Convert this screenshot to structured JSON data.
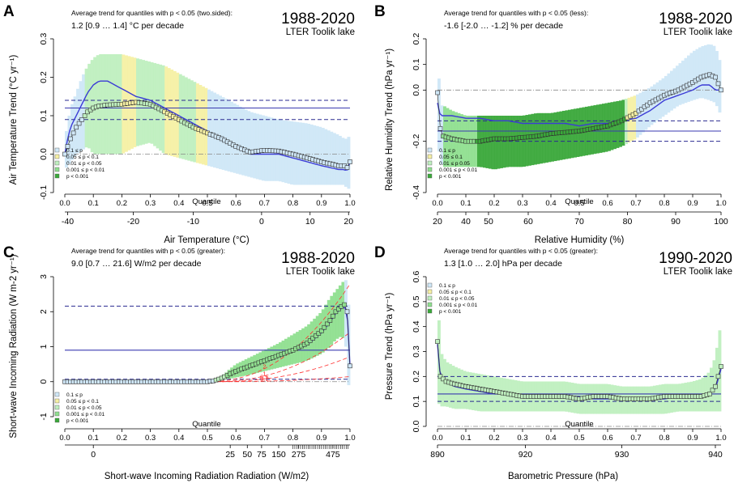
{
  "legend": [
    {
      "label": "0.1 ≤ p",
      "color": "#cfe7f7"
    },
    {
      "label": "0.05 ≤ p < 0.1",
      "color": "#f6f0a4"
    },
    {
      "label": "0.01 ≤ p < 0.05",
      "color": "#bfefbf"
    },
    {
      "label": "0.001 ≤ p < 0.01",
      "color": "#8fdf8f"
    },
    {
      "label": "p < 0.001",
      "color": "#3aa83a"
    }
  ],
  "legend_b": [
    {
      "label": "0.1 ≤ p",
      "color": "#cfe7f7"
    },
    {
      "label": "0.05 ≤        0.1",
      "color": "#f6f0a4"
    },
    {
      "label": "0.01 ≤ p   0.05",
      "color": "#bfefbf"
    },
    {
      "label": "0.001 ≤ p < 0.01",
      "color": "#8fdf8f"
    },
    {
      "label": "p < 0.001",
      "color": "#3aa83a"
    }
  ],
  "chart_data": [
    {
      "panel": "A",
      "type": "line",
      "trend_caption": "Average trend for quantiles with p < 0.05 (two.sided):",
      "trend_value": "1.2  [0.9 … 1.4]  °C per decade",
      "period": "1988-2020",
      "site": "LTER Toolik lake",
      "ylabel": "Air Temperature Trend (°C yr⁻¹)",
      "xlabel": "Air Temperature (°C)",
      "ylim": [
        -0.1,
        0.3
      ],
      "yticks": [
        {
          "v": -0.1,
          "t": "-0.1"
        },
        {
          "v": 0.0,
          "t": "0.0"
        },
        {
          "v": 0.1,
          "t": "0.1"
        },
        {
          "v": 0.2,
          "t": "0.2"
        },
        {
          "v": 0.3,
          "t": "0.3"
        }
      ],
      "quantile_label": "Quantile",
      "quantile_ticks": [
        {
          "q": 0.0,
          "t": "0.0"
        },
        {
          "q": 0.1,
          "t": "0.1"
        },
        {
          "q": 0.2,
          "t": "0.2"
        },
        {
          "q": 0.3,
          "t": "0.3"
        },
        {
          "q": 0.4,
          "t": "0.4"
        },
        {
          "q": 0.5,
          "t": "0.5"
        },
        {
          "q": 0.6,
          "t": "0.6"
        },
        {
          "q": 0.7,
          "t": "0.7"
        },
        {
          "q": 0.8,
          "t": "0.8"
        },
        {
          "q": 0.9,
          "t": "0.9"
        },
        {
          "q": 1.0,
          "t": "1.0"
        }
      ],
      "x_ticks": [
        {
          "q": 0.01,
          "t": "-40"
        },
        {
          "q": 0.24,
          "t": "-20"
        },
        {
          "q": 0.45,
          "t": "-10"
        },
        {
          "q": 0.69,
          "t": "0"
        },
        {
          "q": 0.86,
          "t": "10"
        },
        {
          "q": 0.995,
          "t": "20"
        }
      ],
      "avg_trend": 0.12,
      "ci": [
        0.09,
        0.14
      ],
      "q": [
        0.0,
        0.01,
        0.02,
        0.04,
        0.06,
        0.08,
        0.1,
        0.12,
        0.15,
        0.2,
        0.25,
        0.3,
        0.35,
        0.4,
        0.45,
        0.5,
        0.55,
        0.6,
        0.65,
        0.7,
        0.75,
        0.8,
        0.85,
        0.9,
        0.93,
        0.96,
        0.98,
        0.99,
        1.0
      ],
      "trend": [
        0.0,
        0.02,
        0.04,
        0.07,
        0.09,
        0.11,
        0.12,
        0.125,
        0.128,
        0.13,
        0.135,
        0.13,
        0.11,
        0.09,
        0.07,
        0.055,
        0.04,
        0.02,
        0.005,
        0.01,
        0.008,
        0.0,
        -0.01,
        -0.02,
        -0.025,
        -0.03,
        -0.03,
        -0.035,
        -0.02
      ],
      "fit": [
        0.0,
        0.04,
        0.07,
        0.1,
        0.13,
        0.16,
        0.18,
        0.19,
        0.19,
        0.17,
        0.15,
        0.14,
        0.12,
        0.1,
        0.08,
        0.06,
        0.04,
        0.02,
        0.0,
        0.0,
        0.0,
        -0.01,
        -0.02,
        -0.03,
        -0.035,
        -0.04,
        -0.04,
        -0.045,
        -0.02
      ],
      "upper": [
        0.04,
        0.08,
        0.12,
        0.16,
        0.2,
        0.23,
        0.25,
        0.26,
        0.26,
        0.26,
        0.25,
        0.24,
        0.23,
        0.21,
        0.19,
        0.17,
        0.15,
        0.13,
        0.11,
        0.1,
        0.09,
        0.085,
        0.08,
        0.07,
        0.06,
        0.05,
        0.04,
        0.04,
        0.05
      ],
      "lower": [
        -0.04,
        -0.03,
        -0.02,
        0.0,
        0.01,
        0.02,
        0.0,
        0.0,
        0.0,
        0.0,
        0.02,
        0.03,
        0.0,
        -0.01,
        -0.02,
        -0.03,
        -0.04,
        -0.05,
        -0.06,
        -0.07,
        -0.07,
        -0.08,
        -0.08,
        -0.08,
        -0.08,
        -0.08,
        -0.08,
        -0.09,
        -0.09
      ],
      "sig_bands": [
        {
          "q0": 0.07,
          "q1": 0.5,
          "level": 2
        },
        {
          "q0": 0.2,
          "q1": 0.25,
          "level": 1
        },
        {
          "q0": 0.35,
          "q1": 0.4,
          "level": 1
        },
        {
          "q0": 0.46,
          "q1": 0.5,
          "level": 1
        }
      ]
    },
    {
      "panel": "B",
      "type": "line",
      "trend_caption": "Average trend for quantiles with p < 0.05 (less):",
      "trend_value": "-1.6  [-2.0 … -1.2]  % per decade",
      "period": "1988-2020",
      "site": "LTER Toolik lake",
      "ylabel": "Relative Humidity Trend (hPa yr⁻¹)",
      "xlabel": "Relative Humidity (%)",
      "ylim": [
        -0.4,
        0.2
      ],
      "yticks": [
        {
          "v": -0.4,
          "t": "-0.4"
        },
        {
          "v": -0.2,
          "t": "-0.2"
        },
        {
          "v": 0.0,
          "t": "0.0"
        },
        {
          "v": 0.1,
          "t": "0.1"
        },
        {
          "v": 0.2,
          "t": "0.2"
        }
      ],
      "quantile_label": "Quantile",
      "quantile_ticks": [
        {
          "q": 0.0,
          "t": "0.0"
        },
        {
          "q": 0.1,
          "t": "0.1"
        },
        {
          "q": 0.2,
          "t": "0.2"
        },
        {
          "q": 0.3,
          "t": "0.3"
        },
        {
          "q": 0.4,
          "t": "0.4"
        },
        {
          "q": 0.5,
          "t": "0.5"
        },
        {
          "q": 0.6,
          "t": "0.6"
        },
        {
          "q": 0.7,
          "t": "0.7"
        },
        {
          "q": 0.8,
          "t": "0.8"
        },
        {
          "q": 0.9,
          "t": "0.9"
        },
        {
          "q": 1.0,
          "t": "1.0"
        }
      ],
      "x_ticks": [
        {
          "q": 0.0,
          "t": "20"
        },
        {
          "q": 0.1,
          "t": "40"
        },
        {
          "q": 0.18,
          "t": "50"
        },
        {
          "q": 0.32,
          "t": "60"
        },
        {
          "q": 0.5,
          "t": "70"
        },
        {
          "q": 0.67,
          "t": "80"
        },
        {
          "q": 0.84,
          "t": "90"
        },
        {
          "q": 1.0,
          "t": "100"
        }
      ],
      "avg_trend": -0.16,
      "ci": [
        -0.2,
        -0.12
      ],
      "q": [
        0.0,
        0.01,
        0.02,
        0.05,
        0.1,
        0.15,
        0.2,
        0.25,
        0.3,
        0.35,
        0.4,
        0.45,
        0.5,
        0.55,
        0.6,
        0.65,
        0.7,
        0.75,
        0.8,
        0.85,
        0.9,
        0.93,
        0.96,
        0.98,
        1.0
      ],
      "trend": [
        -0.01,
        -0.15,
        -0.18,
        -0.19,
        -0.2,
        -0.2,
        -0.19,
        -0.19,
        -0.185,
        -0.18,
        -0.17,
        -0.165,
        -0.16,
        -0.15,
        -0.14,
        -0.12,
        -0.09,
        -0.05,
        -0.02,
        0.0,
        0.03,
        0.05,
        0.06,
        0.05,
        0.0
      ],
      "fit": [
        -0.05,
        -0.1,
        -0.1,
        -0.1,
        -0.11,
        -0.11,
        -0.12,
        -0.12,
        -0.13,
        -0.13,
        -0.13,
        -0.13,
        -0.14,
        -0.13,
        -0.13,
        -0.12,
        -0.11,
        -0.08,
        -0.04,
        -0.02,
        0.0,
        0.02,
        0.02,
        0.0,
        0.0
      ],
      "upper": [
        0.15,
        -0.06,
        -0.06,
        -0.08,
        -0.1,
        -0.1,
        -0.1,
        -0.1,
        -0.1,
        -0.09,
        -0.09,
        -0.08,
        -0.07,
        -0.06,
        -0.05,
        -0.04,
        -0.02,
        0.01,
        0.05,
        0.1,
        0.15,
        0.17,
        0.18,
        0.17,
        0.1
      ],
      "lower": [
        -0.2,
        -0.28,
        -0.3,
        -0.3,
        -0.3,
        -0.3,
        -0.31,
        -0.3,
        -0.3,
        -0.29,
        -0.28,
        -0.27,
        -0.26,
        -0.25,
        -0.24,
        -0.22,
        -0.19,
        -0.14,
        -0.1,
        -0.06,
        -0.04,
        -0.03,
        -0.04,
        -0.05,
        -0.1
      ],
      "sig_bands": [
        {
          "q0": 0.02,
          "q1": 0.67,
          "level": 2
        },
        {
          "q0": 0.02,
          "q1": 0.66,
          "level": 3
        },
        {
          "q0": 0.14,
          "q1": 0.66,
          "level": 4
        },
        {
          "q0": 0.67,
          "q1": 0.7,
          "level": 1
        }
      ]
    },
    {
      "panel": "C",
      "type": "line",
      "trend_caption": "Average trend for quantiles with p < 0.05 (greater):",
      "trend_value": "9.0  [0.7 … 21.6]  W/m2 per decade",
      "period": "1988-2020",
      "site": "LTER Toolik lake",
      "ylabel": "Short-wave Incoming Radiation  (W m-2 yr⁻¹)",
      "xlabel": "Short-wave Incoming Radiation Radiation (W/m2)",
      "ylim": [
        -1,
        3
      ],
      "yticks": [
        {
          "v": -1,
          "t": "-1"
        },
        {
          "v": 0,
          "t": "0"
        },
        {
          "v": 1,
          "t": "1"
        },
        {
          "v": 2,
          "t": "2"
        },
        {
          "v": 3,
          "t": "3"
        }
      ],
      "quantile_label": "Quantile",
      "quantile_ticks": [
        {
          "q": 0.0,
          "t": "0.0"
        },
        {
          "q": 0.1,
          "t": "0.1"
        },
        {
          "q": 0.2,
          "t": "0.2"
        },
        {
          "q": 0.3,
          "t": "0.3"
        },
        {
          "q": 0.4,
          "t": "0.4"
        },
        {
          "q": 0.5,
          "t": "0.5"
        },
        {
          "q": 0.6,
          "t": "0.6"
        },
        {
          "q": 0.7,
          "t": "0.7"
        },
        {
          "q": 0.8,
          "t": "0.8"
        },
        {
          "q": 0.9,
          "t": "0.9"
        },
        {
          "q": 1.0,
          "t": "1.0"
        }
      ],
      "x_ticks": [
        {
          "q": 0.1,
          "t": "0"
        },
        {
          "q": 0.58,
          "t": "25"
        },
        {
          "q": 0.64,
          "t": "50"
        },
        {
          "q": 0.69,
          "t": "75"
        },
        {
          "q": 0.75,
          "t": "150"
        },
        {
          "q": 0.82,
          "t": "275"
        },
        {
          "q": 0.94,
          "t": "475"
        }
      ],
      "avg_trend": 0.9,
      "ci": [
        0.07,
        2.16
      ],
      "contour_labels": [
        "2",
        "1",
        "0.5",
        "0.1"
      ],
      "q": [
        0.0,
        0.1,
        0.2,
        0.3,
        0.4,
        0.45,
        0.5,
        0.52,
        0.55,
        0.6,
        0.65,
        0.7,
        0.75,
        0.8,
        0.85,
        0.9,
        0.93,
        0.95,
        0.97,
        0.98,
        0.99,
        1.0
      ],
      "trend": [
        0.0,
        0.0,
        0.0,
        0.0,
        0.0,
        0.0,
        0.0,
        0.02,
        0.1,
        0.3,
        0.45,
        0.6,
        0.75,
        0.9,
        1.1,
        1.45,
        1.75,
        2.0,
        2.15,
        2.2,
        2.0,
        0.45
      ],
      "fit": [
        0.0,
        0.0,
        0.0,
        0.0,
        0.0,
        0.0,
        0.0,
        0.02,
        0.1,
        0.3,
        0.45,
        0.6,
        0.72,
        0.88,
        1.05,
        1.4,
        1.7,
        1.95,
        2.1,
        2.15,
        2.0,
        0.45
      ],
      "upper": [
        0.0,
        0.0,
        0.0,
        0.0,
        0.0,
        0.0,
        0.0,
        0.04,
        0.18,
        0.5,
        0.7,
        0.9,
        1.1,
        1.35,
        1.6,
        2.0,
        2.4,
        2.6,
        2.8,
        2.9,
        2.9,
        1.5
      ],
      "lower": [
        0.0,
        0.0,
        0.0,
        0.0,
        0.0,
        0.0,
        0.0,
        0.0,
        0.04,
        0.12,
        0.2,
        0.3,
        0.4,
        0.5,
        0.6,
        0.8,
        1.0,
        1.2,
        1.3,
        1.2,
        0.8,
        -1.0
      ],
      "sig_bands": [
        {
          "q0": 0.53,
          "q1": 0.985,
          "level": 2
        },
        {
          "q0": 0.57,
          "q1": 0.98,
          "level": 3
        },
        {
          "q0": 0.985,
          "q1": 1.0,
          "level": 0
        }
      ]
    },
    {
      "panel": "D",
      "type": "line",
      "trend_caption": "Average trend for quantiles with p < 0.05 (greater):",
      "trend_value": "1.3  [1.0 … 2.0]  hPa per decade",
      "period": "1990-2020",
      "site": "LTER Toolik lake",
      "ylabel": "Pressure Trend (hPa yr⁻¹)",
      "xlabel": "Barometric Pressure (hPa)",
      "ylim": [
        0.0,
        0.6
      ],
      "yticks": [
        {
          "v": 0.0,
          "t": "0.0"
        },
        {
          "v": 0.1,
          "t": "0.1"
        },
        {
          "v": 0.2,
          "t": "0.2"
        },
        {
          "v": 0.3,
          "t": "0.3"
        },
        {
          "v": 0.4,
          "t": "0.4"
        },
        {
          "v": 0.5,
          "t": "0.5"
        },
        {
          "v": 0.6,
          "t": "0.6"
        }
      ],
      "quantile_label": "Quantile",
      "quantile_ticks": [
        {
          "q": 0.0,
          "t": "0.0"
        },
        {
          "q": 0.1,
          "t": "0.1"
        },
        {
          "q": 0.2,
          "t": "0.2"
        },
        {
          "q": 0.3,
          "t": "0.3"
        },
        {
          "q": 0.4,
          "t": "0.4"
        },
        {
          "q": 0.5,
          "t": "0.5"
        },
        {
          "q": 0.6,
          "t": "0.6"
        },
        {
          "q": 0.7,
          "t": "0.7"
        },
        {
          "q": 0.8,
          "t": "0.8"
        },
        {
          "q": 0.9,
          "t": "0.9"
        },
        {
          "q": 1.0,
          "t": "1.0"
        }
      ],
      "x_ticks": [
        {
          "q": 0.0,
          "t": "890"
        },
        {
          "q": 0.31,
          "t": "920"
        },
        {
          "q": 0.65,
          "t": "930"
        },
        {
          "q": 0.98,
          "t": "940"
        }
      ],
      "avg_trend": 0.13,
      "ci": [
        0.1,
        0.2
      ],
      "q": [
        0.0,
        0.01,
        0.03,
        0.06,
        0.1,
        0.15,
        0.2,
        0.25,
        0.3,
        0.35,
        0.4,
        0.45,
        0.5,
        0.55,
        0.6,
        0.65,
        0.7,
        0.75,
        0.8,
        0.85,
        0.9,
        0.93,
        0.96,
        0.98,
        0.99,
        1.0
      ],
      "trend": [
        0.34,
        0.2,
        0.18,
        0.17,
        0.16,
        0.15,
        0.14,
        0.13,
        0.12,
        0.12,
        0.12,
        0.12,
        0.11,
        0.12,
        0.12,
        0.11,
        0.11,
        0.11,
        0.12,
        0.12,
        0.12,
        0.12,
        0.13,
        0.16,
        0.2,
        0.24
      ],
      "fit": [
        0.33,
        0.2,
        0.18,
        0.16,
        0.15,
        0.14,
        0.13,
        0.13,
        0.12,
        0.12,
        0.12,
        0.12,
        0.12,
        0.11,
        0.11,
        0.11,
        0.11,
        0.11,
        0.11,
        0.12,
        0.12,
        0.12,
        0.13,
        0.15,
        0.19,
        0.23
      ],
      "upper": [
        0.55,
        0.3,
        0.26,
        0.24,
        0.22,
        0.21,
        0.2,
        0.19,
        0.18,
        0.18,
        0.18,
        0.18,
        0.17,
        0.17,
        0.17,
        0.16,
        0.16,
        0.16,
        0.17,
        0.17,
        0.18,
        0.19,
        0.22,
        0.28,
        0.35,
        0.42
      ],
      "lower": [
        0.1,
        0.08,
        0.08,
        0.07,
        0.07,
        0.06,
        0.06,
        0.06,
        0.06,
        0.06,
        0.06,
        0.06,
        0.05,
        0.05,
        0.05,
        0.05,
        0.05,
        0.05,
        0.05,
        0.06,
        0.06,
        0.06,
        0.06,
        0.06,
        0.06,
        0.06
      ],
      "sig_bands": [
        {
          "q0": 0.0,
          "q1": 1.0,
          "level": 2
        }
      ]
    }
  ]
}
